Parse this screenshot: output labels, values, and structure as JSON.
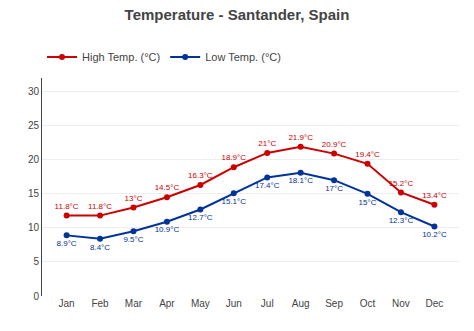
{
  "chart_data": {
    "type": "line",
    "title": "Temperature - Santander, Spain",
    "categories": [
      "Jan",
      "Feb",
      "Mar",
      "Apr",
      "May",
      "Jun",
      "Jul",
      "Aug",
      "Sep",
      "Oct",
      "Nov",
      "Dec"
    ],
    "series": [
      {
        "name": "High Temp. (°C)",
        "color": "#cc0000",
        "marker": "circle",
        "values": [
          11.8,
          11.8,
          13.0,
          14.5,
          16.3,
          18.9,
          21.0,
          21.9,
          20.9,
          19.4,
          15.2,
          13.4
        ],
        "value_labels": [
          "11.8°C",
          "11.8°C",
          "13°C",
          "14.5°C",
          "16.3°C",
          "18.9°C",
          "21°C",
          "21.9°C",
          "20.9°C",
          "19.4°C",
          "15.2°C",
          "13.4°C"
        ]
      },
      {
        "name": "Low Temp. (°C)",
        "color": "#003399",
        "marker": "circle",
        "values": [
          8.9,
          8.4,
          9.5,
          10.9,
          12.7,
          15.1,
          17.4,
          18.1,
          17.0,
          15.0,
          12.3,
          10.2
        ],
        "value_labels": [
          "8.9°C",
          "8.4°C",
          "9.5°C",
          "10.9°C",
          "12.7°C",
          "15.1°C",
          "17.4°C",
          "18.1°C",
          "17°C",
          "15°C",
          "12.3°C",
          "10.2°C"
        ]
      }
    ],
    "ylim": [
      0,
      32
    ],
    "yticks": [
      0,
      5,
      10,
      15,
      20,
      25,
      30
    ],
    "grid": true,
    "legend": "top left",
    "data_labels": true
  }
}
